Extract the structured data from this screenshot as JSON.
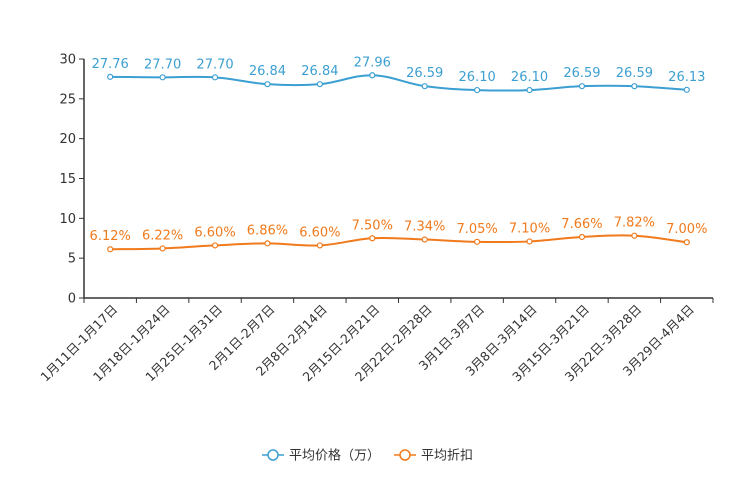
{
  "chart_data": {
    "type": "line",
    "categories": [
      "1月11日-1月17日",
      "1月18日-1月24日",
      "1月25日-1月31日",
      "2月1日-2月7日",
      "2月8日-2月14日",
      "2月15日-2月21日",
      "2月22日-2月28日",
      "3月1日-3月7日",
      "3月8日-3月14日",
      "3月15日-3月21日",
      "3月22日-3月28日",
      "3月29日-4月4日"
    ],
    "ylim": [
      0,
      30
    ],
    "yticks": [
      0,
      5,
      10,
      15,
      20,
      25,
      30
    ],
    "legend_position": "bottom",
    "series": [
      {
        "name": "平均价格（万）",
        "color": "#3c9fd1",
        "values": [
          27.76,
          27.7,
          27.7,
          26.84,
          26.84,
          27.96,
          26.59,
          26.1,
          26.1,
          26.59,
          26.59,
          26.13
        ],
        "labels": [
          "27.76",
          "27.70",
          "27.70",
          "26.84",
          "26.84",
          "27.96",
          "26.59",
          "26.10",
          "26.10",
          "26.59",
          "26.59",
          "26.13"
        ]
      },
      {
        "name": "平均折扣",
        "color": "#f07a1c",
        "values": [
          6.12,
          6.22,
          6.6,
          6.86,
          6.6,
          7.5,
          7.34,
          7.05,
          7.1,
          7.66,
          7.82,
          7.0
        ],
        "labels": [
          "6.12%",
          "6.22%",
          "6.60%",
          "6.86%",
          "6.60%",
          "7.50%",
          "7.34%",
          "7.05%",
          "7.10%",
          "7.66%",
          "7.82%",
          "7.00%"
        ]
      }
    ]
  }
}
